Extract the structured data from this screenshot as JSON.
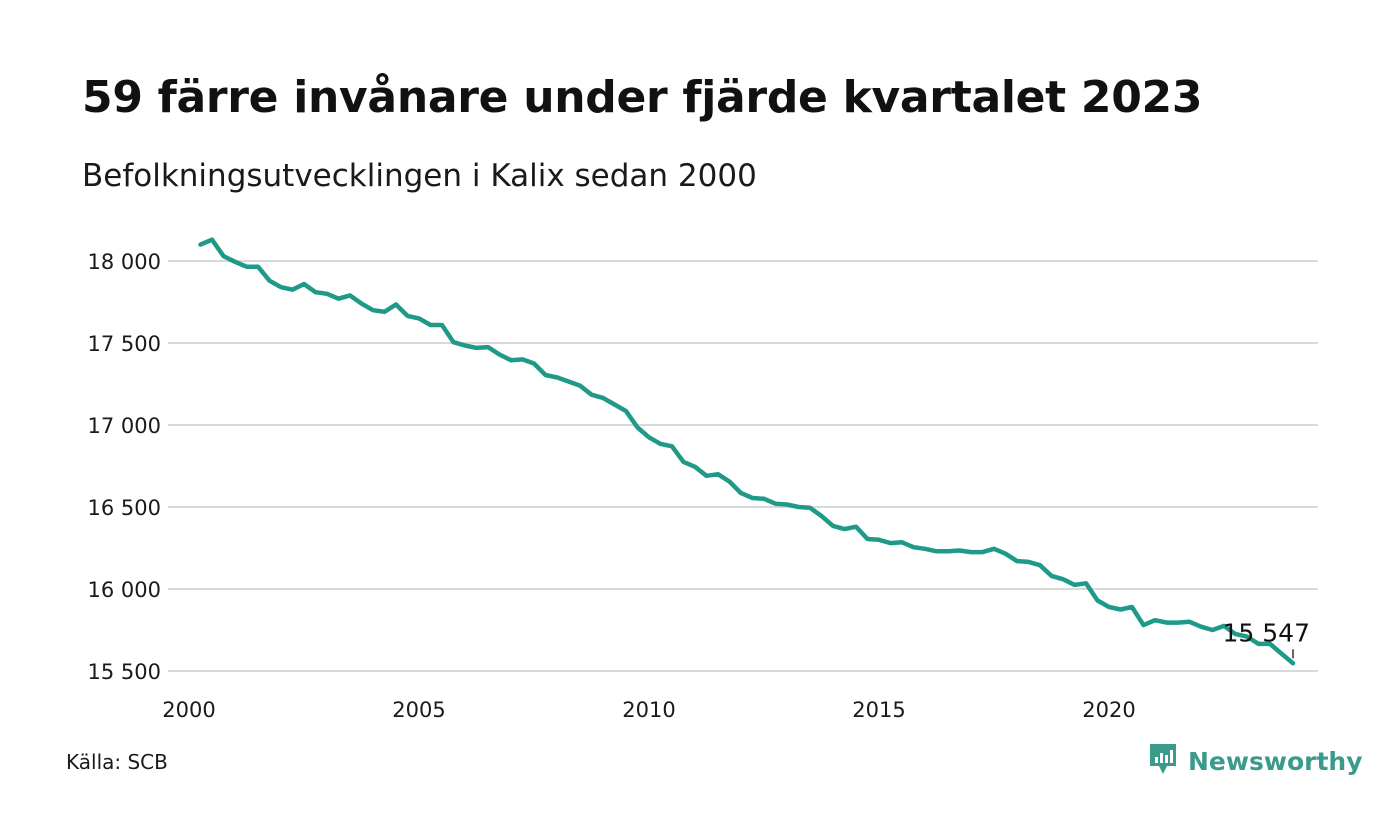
{
  "title": "59 färre invånare under fjärde kvartalet 2023",
  "subtitle": "Befolkningsutvecklingen i Kalix sedan 2000",
  "source": "Källa: SCB",
  "brand": {
    "name": "Newsworthy",
    "icon": "newsworthy-logo-icon",
    "color": "#3a9a8c"
  },
  "chart_data": {
    "type": "line",
    "title": "59 färre invånare under fjärde kvartalet 2023",
    "subtitle": "Befolkningsutvecklingen i Kalix sedan 2000",
    "xlabel": "",
    "ylabel": "",
    "x_unit": "year (quarterly data)",
    "ylim": [
      15500,
      18200
    ],
    "xlim": [
      2000,
      2024.9
    ],
    "y_ticks": [
      15500,
      16000,
      16500,
      17000,
      17500,
      18000
    ],
    "y_tick_labels": [
      "15 500",
      "16 000",
      "16 500",
      "17 000",
      "17 500",
      "18 000"
    ],
    "x_ticks": [
      2000,
      2005,
      2010,
      2015,
      2020
    ],
    "x_tick_labels": [
      "2000",
      "2005",
      "2010",
      "2015",
      "2020"
    ],
    "grid": "horizontal",
    "line_color": "#1f9a88",
    "end_label": "15 547",
    "series": [
      {
        "x": [
          2000.25,
          2000.5,
          2000.75,
          2001,
          2001.25,
          2001.5,
          2001.75,
          2002,
          2002.25,
          2002.5,
          2002.75,
          2003,
          2003.25,
          2003.5,
          2003.75,
          2004,
          2004.25,
          2004.5,
          2004.75,
          2005,
          2005.25,
          2005.5,
          2005.75,
          2006,
          2006.25,
          2006.5,
          2006.75,
          2007,
          2007.25,
          2007.5,
          2007.75,
          2008,
          2008.25,
          2008.5,
          2008.75,
          2009,
          2009.25,
          2009.5,
          2009.75,
          2010,
          2010.25,
          2010.5,
          2010.75,
          2011,
          2011.25,
          2011.5,
          2011.75,
          2012,
          2012.25,
          2012.5,
          2012.75,
          2013,
          2013.25,
          2013.5,
          2013.75,
          2014,
          2014.25,
          2014.5,
          2014.75,
          2015,
          2015.25,
          2015.5,
          2015.75,
          2016,
          2016.25,
          2016.5,
          2016.75,
          2017,
          2017.25,
          2017.5,
          2017.75,
          2018,
          2018.25,
          2018.5,
          2018.75,
          2019,
          2019.25,
          2019.5,
          2019.75,
          2020,
          2020.25,
          2020.5,
          2020.75,
          2021,
          2021.25,
          2021.5,
          2021.75,
          2022,
          2022.25,
          2022.5,
          2022.75,
          2023,
          2023.25,
          2023.5,
          2023.75,
          2024
        ],
        "values": [
          18100,
          18130,
          18030,
          17995,
          17965,
          17965,
          17880,
          17840,
          17825,
          17860,
          17810,
          17800,
          17770,
          17790,
          17740,
          17700,
          17690,
          17735,
          17665,
          17650,
          17610,
          17610,
          17505,
          17485,
          17470,
          17475,
          17430,
          17395,
          17400,
          17375,
          17305,
          17290,
          17265,
          17240,
          17185,
          17165,
          17125,
          17085,
          16985,
          16925,
          16885,
          16870,
          16775,
          16745,
          16690,
          16700,
          16655,
          16585,
          16555,
          16550,
          16520,
          16515,
          16500,
          16495,
          16445,
          16385,
          16365,
          16380,
          16305,
          16300,
          16280,
          16285,
          16255,
          16245,
          16230,
          16230,
          16235,
          16225,
          16225,
          16245,
          16215,
          16170,
          16165,
          16145,
          16080,
          16060,
          16025,
          16035,
          15930,
          15890,
          15875,
          15890,
          15780,
          15810,
          15795,
          15795,
          15800,
          15770,
          15750,
          15775,
          15725,
          15710,
          15665,
          15665,
          15606,
          15547
        ]
      }
    ]
  }
}
